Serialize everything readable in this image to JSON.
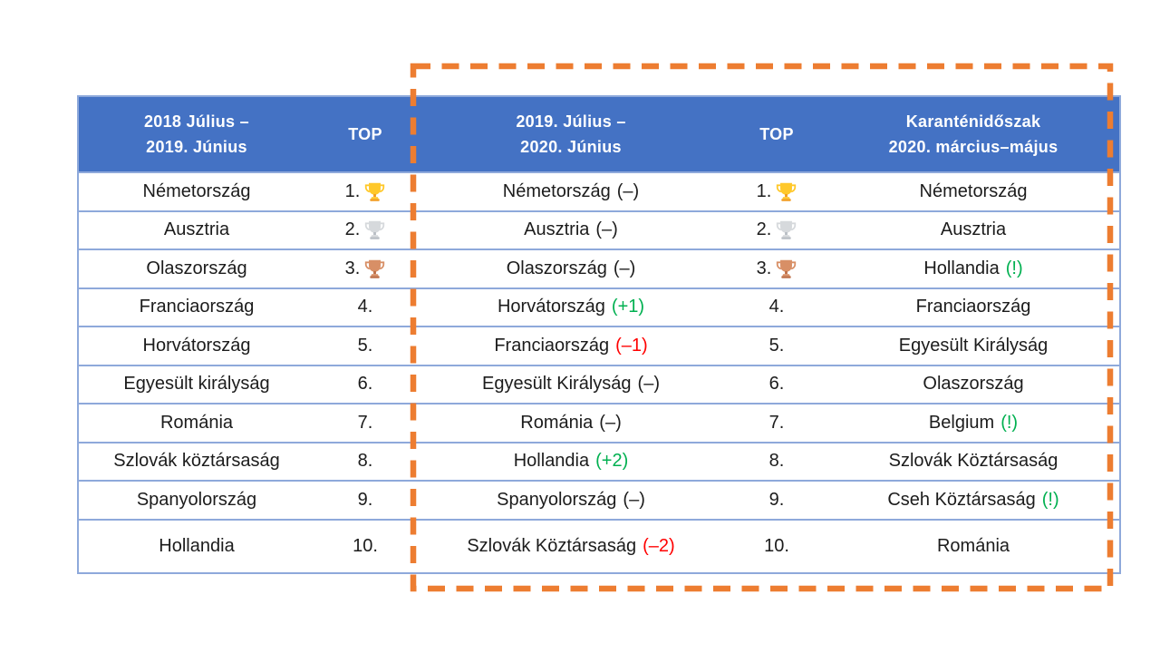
{
  "table": {
    "header": {
      "col_2018": "2018 Július –\n2019. Június",
      "top_1": "TOP",
      "col_2019": "2019. Július –\n2020. Június",
      "top_2": "TOP",
      "col_quarantine": "Karanténidőszak\n2020. március–május"
    },
    "rows": [
      {
        "rank": "1.",
        "trophy": "gold",
        "y2018": "Németország",
        "y2019": "Németország",
        "y2019_change": "(–)",
        "y2019_change_type": "same",
        "quarantine": "Németország",
        "quarantine_mark": ""
      },
      {
        "rank": "2.",
        "trophy": "silver",
        "y2018": "Ausztria",
        "y2019": "Ausztria",
        "y2019_change": "(–)",
        "y2019_change_type": "same",
        "quarantine": "Ausztria",
        "quarantine_mark": ""
      },
      {
        "rank": "3.",
        "trophy": "bronze",
        "y2018": "Olaszország",
        "y2019": "Olaszország",
        "y2019_change": "(–)",
        "y2019_change_type": "same",
        "quarantine": "Hollandia",
        "quarantine_mark": "(!)"
      },
      {
        "rank": "4.",
        "trophy": null,
        "y2018": "Franciaország",
        "y2019": "Horvátország",
        "y2019_change": "(+1)",
        "y2019_change_type": "up",
        "quarantine": "Franciaország",
        "quarantine_mark": ""
      },
      {
        "rank": "5.",
        "trophy": null,
        "y2018": "Horvátország",
        "y2019": "Franciaország",
        "y2019_change": "(–1)",
        "y2019_change_type": "down",
        "quarantine": "Egyesült Királyság",
        "quarantine_mark": ""
      },
      {
        "rank": "6.",
        "trophy": null,
        "y2018": "Egyesült királyság",
        "y2019": "Egyesült Királyság",
        "y2019_change": "(–)",
        "y2019_change_type": "same",
        "quarantine": "Olaszország",
        "quarantine_mark": ""
      },
      {
        "rank": "7.",
        "trophy": null,
        "y2018": "Románia",
        "y2019": "Románia",
        "y2019_change": "(–)",
        "y2019_change_type": "same",
        "quarantine": "Belgium",
        "quarantine_mark": "(!)"
      },
      {
        "rank": "8.",
        "trophy": null,
        "y2018": "Szlovák köztársaság",
        "y2019": "Hollandia",
        "y2019_change": "(+2)",
        "y2019_change_type": "up",
        "quarantine": "Szlovák Köztársaság",
        "quarantine_mark": ""
      },
      {
        "rank": "9.",
        "trophy": null,
        "y2018": "Spanyolország",
        "y2019": "Spanyolország",
        "y2019_change": "(–)",
        "y2019_change_type": "same",
        "quarantine": "Cseh Köztársaság",
        "quarantine_mark": "(!)"
      },
      {
        "rank": "10.",
        "trophy": null,
        "y2018": "Hollandia",
        "y2019": "Szlovák Köztársaság",
        "y2019_change": "(–2)",
        "y2019_change_type": "down",
        "quarantine": "Románia",
        "quarantine_mark": ""
      }
    ],
    "colors": {
      "header_bg": "#4472C4",
      "header_fg": "#FFFFFF",
      "border": "#8EA9DB",
      "text": "#1C1C1C",
      "up_green": "#00B050",
      "down_red": "#FF0000",
      "highlight_orange": "#ED7D31",
      "trophy_gold": "#FFC82A",
      "trophy_gold_dark": "#F29C1F",
      "trophy_silver": "#D6D9DC",
      "trophy_silver_dark": "#B9BEC4",
      "trophy_bronze": "#D88F66",
      "trophy_bronze_dark": "#BD6F48"
    }
  }
}
